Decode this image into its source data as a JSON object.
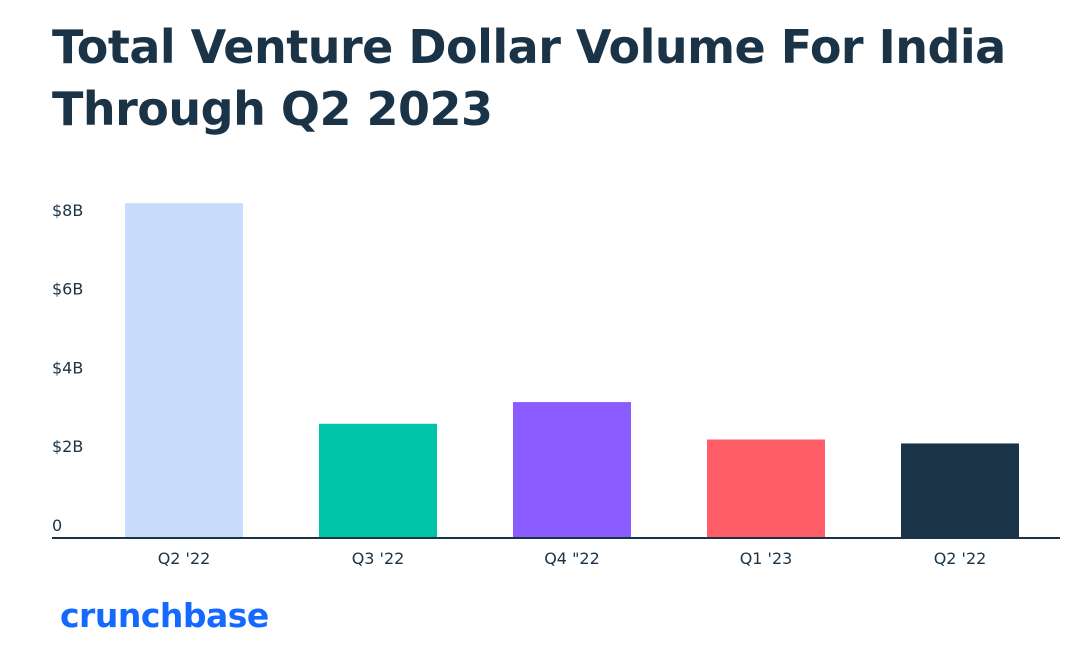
{
  "title_line1": "Total Venture Dollar Volume For India",
  "title_line2": "Through Q2 2023",
  "brand": "crunchbase",
  "chart_data": {
    "type": "bar",
    "title": "Total Venture Dollar Volume For India Through Q2 2023",
    "categories": [
      "Q2 '22",
      "Q3 '22",
      "Q4 \"22",
      "Q1 '23",
      "Q2 '22"
    ],
    "values": [
      8.5,
      2.9,
      3.45,
      2.5,
      2.4
    ],
    "unit": "billion USD",
    "ylim": [
      0,
      8.5
    ],
    "yticks": [
      {
        "value": 0,
        "label": "0"
      },
      {
        "value": 2,
        "label": "$2B"
      },
      {
        "value": 4,
        "label": "$4B"
      },
      {
        "value": 6,
        "label": "$6B"
      },
      {
        "value": 8,
        "label": "$8B"
      }
    ],
    "colors": [
      "#c9dcfc",
      "#00c4a7",
      "#8b5cff",
      "#ff5d67",
      "#1b3347"
    ],
    "axis_color": "#1b3347",
    "grid": false,
    "legend": "none"
  }
}
